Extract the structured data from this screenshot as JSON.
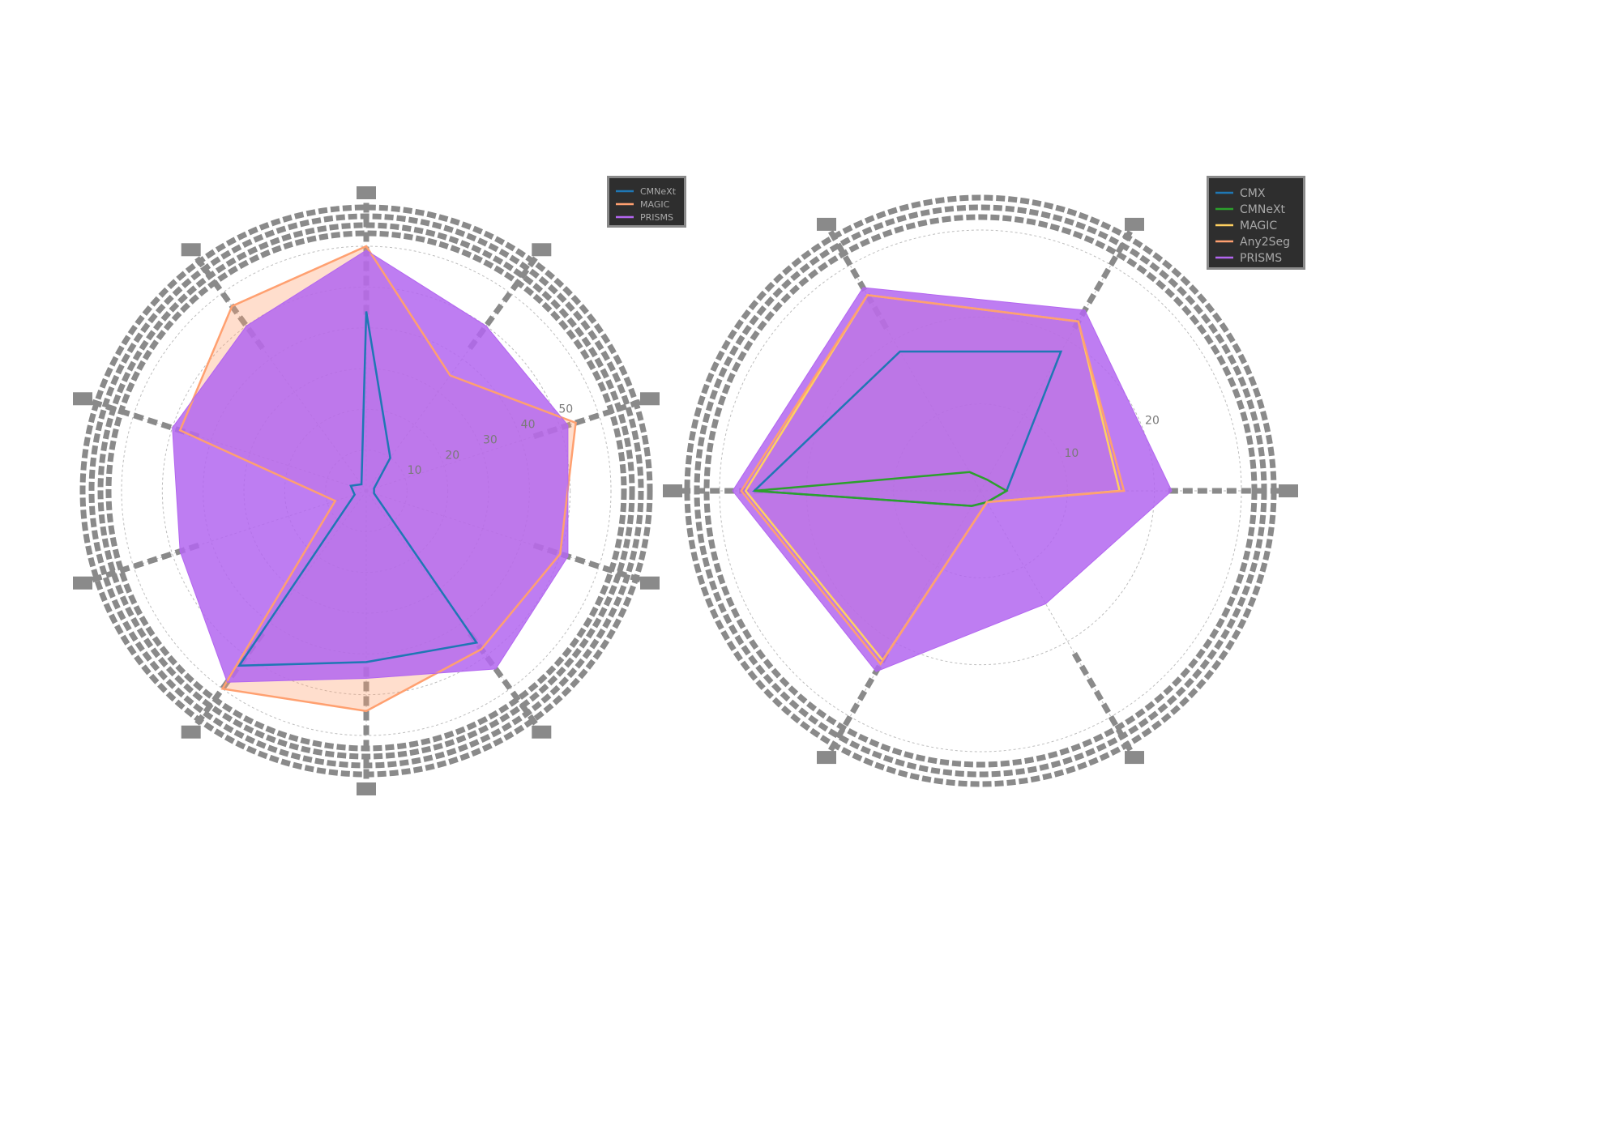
{
  "chart_data": [
    {
      "type": "radar",
      "title": "",
      "categories": [
        "",
        "",
        "",
        "",
        "",
        "",
        "",
        "",
        "",
        ""
      ],
      "rmax": 60,
      "radial_ticks": [
        10,
        20,
        30,
        40,
        50,
        60
      ],
      "radial_tick_labels": [
        "10",
        "20",
        "30",
        "40",
        "50"
      ],
      "grid": true,
      "legend_position": "top-right",
      "series": [
        {
          "name": "CMNeXt",
          "color": "#1f77b4",
          "values": [
            44,
            10,
            2,
            2,
            46,
            42,
            53,
            3,
            4,
            2
          ],
          "fill_opacity": 0.15
        },
        {
          "name": "MAGIC",
          "color": "#ffa070",
          "values": [
            60,
            35,
            54,
            50,
            48,
            54,
            60,
            8,
            48,
            56
          ],
          "fill_opacity": 0.35
        },
        {
          "name": "PRISMS",
          "color": "#b366f0",
          "values": [
            59,
            50,
            52,
            52,
            54,
            46,
            58,
            48,
            50,
            50
          ],
          "fill_opacity": 0.85
        }
      ]
    },
    {
      "type": "radar",
      "title": "",
      "categories": [
        "",
        "",
        "",
        "",
        "",
        ""
      ],
      "rmax": 30,
      "radial_ticks": [
        10,
        20,
        30
      ],
      "radial_tick_labels": [
        "10",
        "20"
      ],
      "grid": true,
      "legend_position": "top-right",
      "series": [
        {
          "name": "CMX",
          "color": "#1f77b4",
          "values": [
            3,
            1.5,
            2,
            26,
            18.5,
            18.5
          ],
          "fill_opacity": 0.15
        },
        {
          "name": "CMNeXt",
          "color": "#2ca02c",
          "values": [
            3,
            1.5,
            2,
            26,
            2.5,
            1.5
          ],
          "fill_opacity": 0.15
        },
        {
          "name": "MAGIC",
          "color": "#ffd060",
          "values": [
            16,
            1.5,
            22.5,
            27,
            26,
            22.5
          ],
          "fill_opacity": 0.3
        },
        {
          "name": "Any2Seg",
          "color": "#ffa070",
          "values": [
            16.5,
            1.5,
            23,
            27.5,
            26,
            22.5
          ],
          "fill_opacity": 0.3
        },
        {
          "name": "PRISMS",
          "color": "#b366f0",
          "values": [
            22,
            15,
            24,
            28.5,
            27,
            24
          ],
          "fill_opacity": 0.85
        }
      ]
    }
  ]
}
